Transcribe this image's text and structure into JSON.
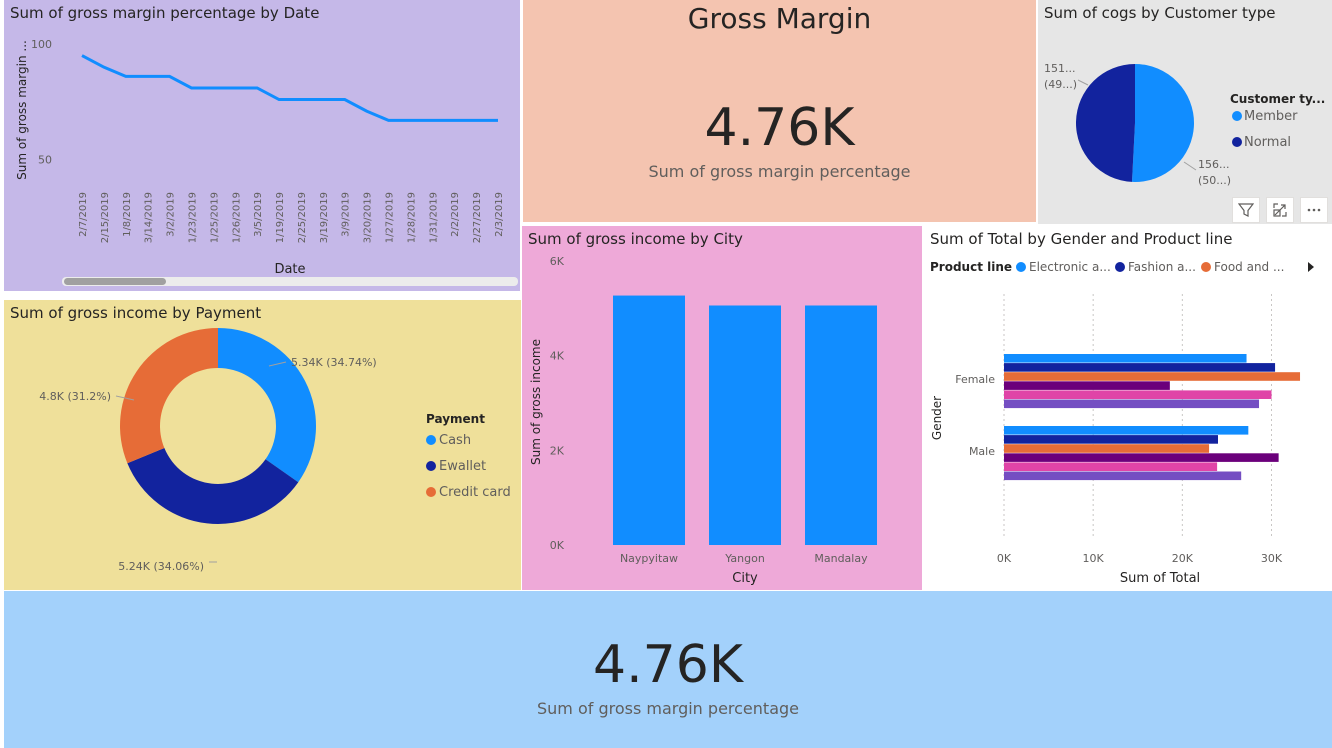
{
  "colors": {
    "line_tile_bg": "#c5b8e8",
    "card_top_bg": "#f4c4b0",
    "pie_tile_bg": "#e6e6e6",
    "donut_tile_bg": "#efe09a",
    "bar_tile_bg": "#eea9d8",
    "hbar_tile_bg": "#ffffff",
    "card_bottom_bg": "#a3d1fb",
    "blue": "#118dff",
    "dark_blue": "#12239e",
    "orange": "#e66c37",
    "purple": "#6b007b",
    "pink": "#e044a7",
    "violet": "#744ec2"
  },
  "line_tile": {
    "title": "Sum of gross margin percentage by Date"
  },
  "gross_margin_card": {
    "heading": "Gross Margin",
    "value": "4.76K",
    "label": "Sum of gross margin percentage"
  },
  "pie_tile": {
    "title": "Sum of cogs by Customer type",
    "legend_title": "Customer ty...",
    "label_top_1": "151...",
    "label_top_2": "(49...)",
    "label_bottom_1": "156...",
    "label_bottom_2": "(50...)",
    "header_icons": [
      "filter-icon",
      "focus-mode-icon",
      "more-options-icon"
    ]
  },
  "donut_tile": {
    "title": "Sum of gross income by Payment",
    "legend_title": "Payment"
  },
  "bar_tile": {
    "title": "Sum of gross income by City"
  },
  "hbar_tile": {
    "title": "Sum of Total by Gender and Product line",
    "legend_title": "Product line"
  },
  "bottom_card": {
    "value": "4.76K",
    "label": "Sum of gross margin percentage"
  },
  "chart_data": [
    {
      "type": "line",
      "title": "Sum of gross margin percentage by Date",
      "xlabel": "Date",
      "ylabel": "Sum of gross margin ...",
      "x": [
        "2/7/2019",
        "2/15/2019",
        "1/8/2019",
        "3/14/2019",
        "3/2/2019",
        "1/23/2019",
        "1/25/2019",
        "1/26/2019",
        "3/5/2019",
        "1/19/2019",
        "2/25/2019",
        "3/19/2019",
        "3/9/2019",
        "3/20/2019",
        "1/27/2019",
        "1/28/2019",
        "1/31/2019",
        "2/2/2019",
        "2/27/2019",
        "2/3/2019"
      ],
      "y": [
        95,
        90,
        86,
        86,
        86,
        81,
        81,
        81,
        81,
        76,
        76,
        76,
        76,
        71,
        67,
        67,
        67,
        67,
        67,
        67
      ],
      "yticks": [
        50,
        100
      ],
      "ytick_labels": [
        "50",
        "100"
      ],
      "ylim": [
        30,
        100
      ]
    },
    {
      "type": "pie",
      "title": "Sum of cogs by Customer type",
      "legend_title": "Customer ty...",
      "labels": [
        "Member",
        "Normal"
      ],
      "values": [
        156,
        151
      ],
      "colors": [
        "#118dff",
        "#12239e"
      ]
    },
    {
      "type": "pie",
      "title": "Sum of gross income by Payment",
      "legend_title": "Payment",
      "labels": [
        "Cash",
        "Ewallet",
        "Credit card"
      ],
      "values": [
        5.34,
        5.24,
        4.8
      ],
      "value_labels": [
        "5.34K (34.74%)",
        "5.24K (34.06%)",
        "4.8K (31.2%)"
      ],
      "colors": [
        "#118dff",
        "#12239e",
        "#e66c37"
      ]
    },
    {
      "type": "bar",
      "title": "Sum of gross income by City",
      "xlabel": "City",
      "ylabel": "Sum of gross income",
      "categories": [
        "Naypyitaw",
        "Yangon",
        "Mandalay"
      ],
      "values": [
        5.27,
        5.06,
        5.06
      ],
      "ylim": [
        0,
        6
      ],
      "yticks": [
        0,
        2,
        4,
        6
      ],
      "ytick_labels": [
        "0K",
        "2K",
        "4K",
        "6K"
      ]
    },
    {
      "type": "bar",
      "orientation": "horizontal",
      "title": "Sum of Total by Gender and Product line",
      "xlabel": "Sum of Total",
      "ylabel": "Gender",
      "categories": [
        "Female",
        "Male"
      ],
      "xlim": [
        0,
        35
      ],
      "xticks": [
        0,
        10,
        20,
        30
      ],
      "xtick_labels": [
        "0K",
        "10K",
        "20K",
        "30K"
      ],
      "legend_title": "Product line",
      "legend_visible": [
        "Electronic a...",
        "Fashion a...",
        "Food and ..."
      ],
      "series": [
        {
          "name": "Electronic a...",
          "color": "#118dff",
          "values": [
            27.2,
            27.4
          ]
        },
        {
          "name": "Fashion a...",
          "color": "#12239e",
          "values": [
            30.4,
            24
          ]
        },
        {
          "name": "Food and ...",
          "color": "#e66c37",
          "values": [
            33.2,
            23
          ]
        },
        {
          "color": "#6b007b",
          "values": [
            18.6,
            30.8
          ]
        },
        {
          "color": "#e044a7",
          "values": [
            30,
            23.9
          ]
        },
        {
          "color": "#744ec2",
          "values": [
            28.6,
            26.6
          ]
        }
      ]
    }
  ]
}
